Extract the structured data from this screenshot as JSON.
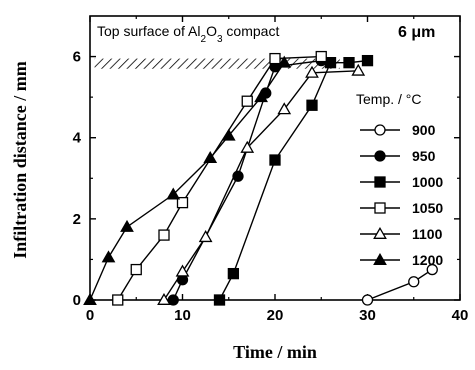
{
  "chart_data": {
    "type": "line",
    "xlabel": "Time / min",
    "ylabel": "Infiltration distance / mm",
    "xlim": [
      0,
      40
    ],
    "ylim": [
      0,
      7
    ],
    "xticks": [
      0,
      10,
      20,
      30,
      40
    ],
    "yticks": [
      0,
      2,
      4,
      6
    ],
    "annotation": {
      "top_surface_prefix": "Top surface of Al",
      "sub1": "2",
      "mid": "O",
      "sub2": "3",
      "suffix": " compact",
      "band_y": [
        5.7,
        5.95
      ],
      "band_x": [
        0.5,
        27
      ]
    },
    "particle_size": "6 μm",
    "legend_title": "Temp. / °C",
    "legend_position": "right",
    "series": [
      {
        "name": "900",
        "marker": "circle",
        "filled": false,
        "x": [
          30,
          35,
          37
        ],
        "y": [
          0.0,
          0.45,
          0.75
        ]
      },
      {
        "name": "950",
        "marker": "circle",
        "filled": true,
        "x": [
          9,
          10,
          16,
          19,
          20,
          25,
          26
        ],
        "y": [
          0.0,
          0.5,
          3.05,
          5.1,
          5.75,
          5.9,
          5.85
        ]
      },
      {
        "name": "1000",
        "marker": "square",
        "filled": true,
        "x": [
          14,
          15.5,
          20,
          24,
          26,
          28,
          30
        ],
        "y": [
          0.0,
          0.65,
          3.45,
          4.8,
          5.85,
          5.85,
          5.9
        ]
      },
      {
        "name": "1050",
        "marker": "square",
        "filled": false,
        "x": [
          3,
          5,
          8,
          10,
          17,
          20,
          25
        ],
        "y": [
          0.0,
          0.75,
          1.6,
          2.4,
          4.9,
          5.95,
          6.0
        ]
      },
      {
        "name": "1100",
        "marker": "triangle",
        "filled": false,
        "x": [
          8,
          10,
          12.5,
          17,
          21,
          24,
          29
        ],
        "y": [
          0.0,
          0.7,
          1.55,
          3.75,
          4.7,
          5.6,
          5.65
        ]
      },
      {
        "name": "1200",
        "marker": "triangle",
        "filled": true,
        "x": [
          0,
          2,
          4,
          9,
          13,
          15,
          18.5,
          21
        ],
        "y": [
          0.0,
          1.05,
          1.8,
          2.6,
          3.5,
          4.05,
          5.0,
          5.85
        ]
      }
    ]
  }
}
